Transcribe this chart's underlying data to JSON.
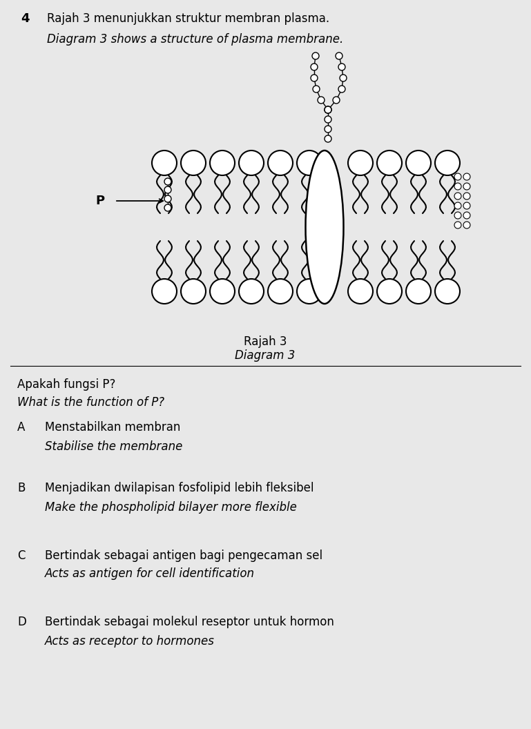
{
  "question_number": "4",
  "title_malay": "Rajah 3 menunjukkan struktur membran plasma.",
  "title_english": "Diagram 3 shows a structure of plasma membrane.",
  "diagram_label_malay": "Rajah 3",
  "diagram_label_english": "Diagram 3",
  "question_malay": "Apakah fungsi P?",
  "question_english": "What is the function of P?",
  "options": [
    {
      "letter": "A",
      "malay": "Menstabilkan membran",
      "english": "Stabilise the membrane"
    },
    {
      "letter": "B",
      "malay": "Menjadikan dwilapisan fosfolipid lebih fleksibel",
      "english": "Make the phospholipid bilayer more flexible"
    },
    {
      "letter": "C",
      "malay": "Bertindak sebagai antigen bagi pengecaman sel",
      "english": "Acts as antigen for cell identification"
    },
    {
      "letter": "D",
      "malay": "Bertindak sebagai molekul reseptor untuk hormon",
      "english": "Acts as receptor to hormones"
    }
  ],
  "bg_color": "#e8e8e8",
  "text_color": "#000000"
}
